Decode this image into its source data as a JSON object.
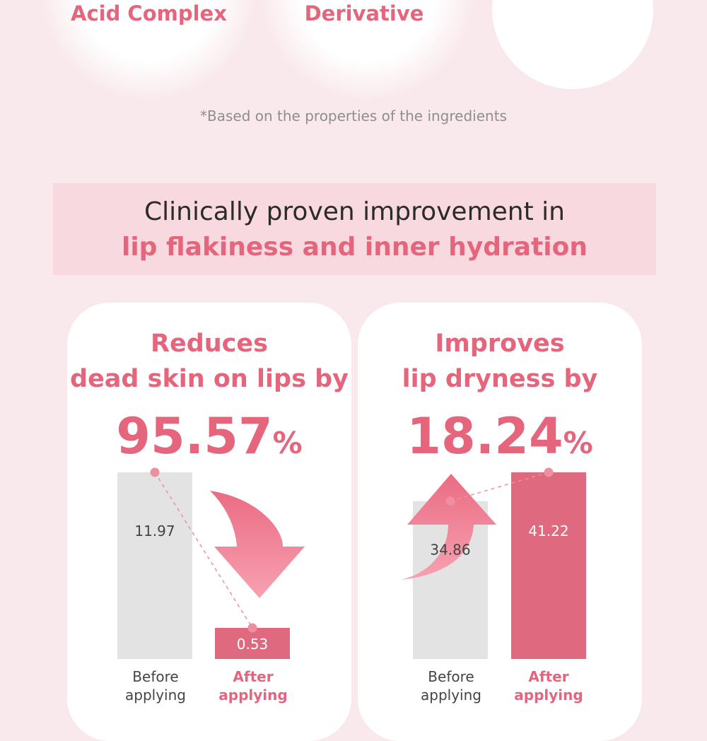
{
  "ingredients": [
    {
      "label": "Acid Complex"
    },
    {
      "label": "Derivative"
    }
  ],
  "footnote": "*Based on the properties of the ingredients",
  "heading": {
    "line1": "Clinically proven improvement in",
    "line2": "lip flakiness and inner hydration"
  },
  "colors": {
    "accent": "#e5657d",
    "before_bar": "#e3e3e3",
    "after_bar": "#df6a7f",
    "background": "#f9e9ec"
  },
  "chart_data": [
    {
      "type": "bar",
      "title_line1": "Reduces",
      "title_line2": "dead skin on lips by",
      "headline_number": "95.57",
      "headline_unit": "%",
      "categories": [
        "Before applying",
        "After applying"
      ],
      "category_lines": [
        [
          "Before",
          "applying"
        ],
        [
          "After",
          "applying"
        ]
      ],
      "values": [
        11.97,
        0.53
      ],
      "value_labels": [
        "11.97",
        "0.53"
      ],
      "arrow": "down"
    },
    {
      "type": "bar",
      "title_line1": "Improves",
      "title_line2": "lip dryness by",
      "headline_number": "18.24",
      "headline_unit": "%",
      "categories": [
        "Before applying",
        "After applying"
      ],
      "category_lines": [
        [
          "Before",
          "applying"
        ],
        [
          "After",
          "applying"
        ]
      ],
      "values": [
        34.86,
        41.22
      ],
      "value_labels": [
        "34.86",
        "41.22"
      ],
      "arrow": "up"
    }
  ]
}
